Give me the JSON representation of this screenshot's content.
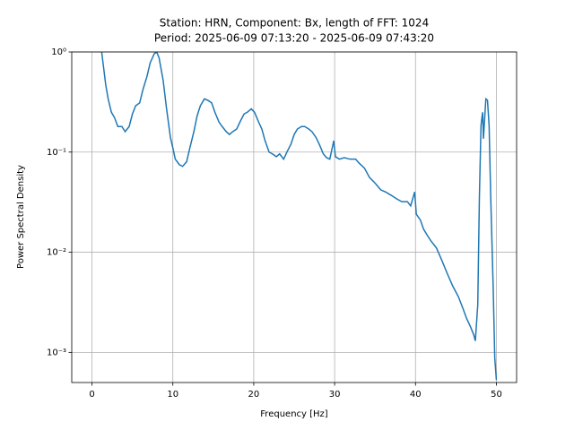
{
  "chart_data": {
    "type": "line",
    "title": "Station: HRN, Component: Bx, length of FFT: 1024",
    "subtitle": "Period: 2025-06-09 07:13:20 - 2025-06-09 07:43:20",
    "x_label": "Frequency [Hz]",
    "y_label": "Power Spectral Density",
    "xlim": [
      -2.5,
      52.5
    ],
    "ylim": [
      0.0005,
      1
    ],
    "y_log": true,
    "grid": true,
    "xticks": [
      0,
      10,
      20,
      30,
      40,
      50
    ],
    "yticks": [
      {
        "value": 1,
        "label": "10⁰"
      },
      {
        "value": 0.1,
        "label": "10⁻¹"
      },
      {
        "value": 0.01,
        "label": "10⁻²"
      },
      {
        "value": 0.001,
        "label": "10⁻³"
      }
    ],
    "series": [
      {
        "color": "#1f77b4",
        "x": [
          1.2,
          1.7,
          2.0,
          2.4,
          2.8,
          3.2,
          3.7,
          4.1,
          4.6,
          5.0,
          5.4,
          5.9,
          6.3,
          6.8,
          7.2,
          7.7,
          8.0,
          8.3,
          8.8,
          9.2,
          9.7,
          10.0,
          10.3,
          10.8,
          11.2,
          11.7,
          12.1,
          12.6,
          13.0,
          13.4,
          13.9,
          14.3,
          14.8,
          15.2,
          15.7,
          16.1,
          16.6,
          17.0,
          17.4,
          17.9,
          18.3,
          18.8,
          19.2,
          19.7,
          20.1,
          20.6,
          21.0,
          21.4,
          21.9,
          22.3,
          22.8,
          23.2,
          23.7,
          24.1,
          24.6,
          25.0,
          25.4,
          25.9,
          26.3,
          26.8,
          27.2,
          27.7,
          28.1,
          28.6,
          29.0,
          29.4,
          29.9,
          30.1,
          30.6,
          31.2,
          31.9,
          32.6,
          33.0,
          33.7,
          34.3,
          35.0,
          35.7,
          36.3,
          37.0,
          37.7,
          38.3,
          39.0,
          39.4,
          39.9,
          40.1,
          40.6,
          41.0,
          41.4,
          41.9,
          42.6,
          43.2,
          43.9,
          44.6,
          45.3,
          45.9,
          46.3,
          46.8,
          47.2,
          47.4,
          47.7,
          47.9,
          48.1,
          48.3,
          48.4,
          48.7,
          48.9,
          49.1,
          49.3,
          49.6,
          49.8,
          50.0
        ],
        "values": [
          1.0,
          0.47,
          0.34,
          0.25,
          0.22,
          0.18,
          0.18,
          0.16,
          0.18,
          0.24,
          0.29,
          0.31,
          0.42,
          0.57,
          0.78,
          0.96,
          1.0,
          0.87,
          0.52,
          0.28,
          0.14,
          0.11,
          0.085,
          0.075,
          0.072,
          0.08,
          0.11,
          0.16,
          0.23,
          0.29,
          0.34,
          0.33,
          0.31,
          0.25,
          0.2,
          0.18,
          0.16,
          0.15,
          0.16,
          0.17,
          0.2,
          0.24,
          0.25,
          0.27,
          0.25,
          0.2,
          0.17,
          0.13,
          0.1,
          0.096,
          0.09,
          0.096,
          0.085,
          0.1,
          0.12,
          0.15,
          0.17,
          0.18,
          0.18,
          0.17,
          0.16,
          0.14,
          0.12,
          0.096,
          0.088,
          0.085,
          0.13,
          0.09,
          0.085,
          0.088,
          0.085,
          0.085,
          0.078,
          0.069,
          0.056,
          0.049,
          0.042,
          0.04,
          0.037,
          0.034,
          0.032,
          0.032,
          0.029,
          0.04,
          0.024,
          0.021,
          0.017,
          0.015,
          0.013,
          0.011,
          0.0085,
          0.0062,
          0.0046,
          0.0036,
          0.0027,
          0.0022,
          0.0018,
          0.0015,
          0.0013,
          0.003,
          0.036,
          0.185,
          0.25,
          0.136,
          0.34,
          0.33,
          0.185,
          0.036,
          0.0046,
          0.00088,
          0.00053
        ]
      }
    ]
  }
}
